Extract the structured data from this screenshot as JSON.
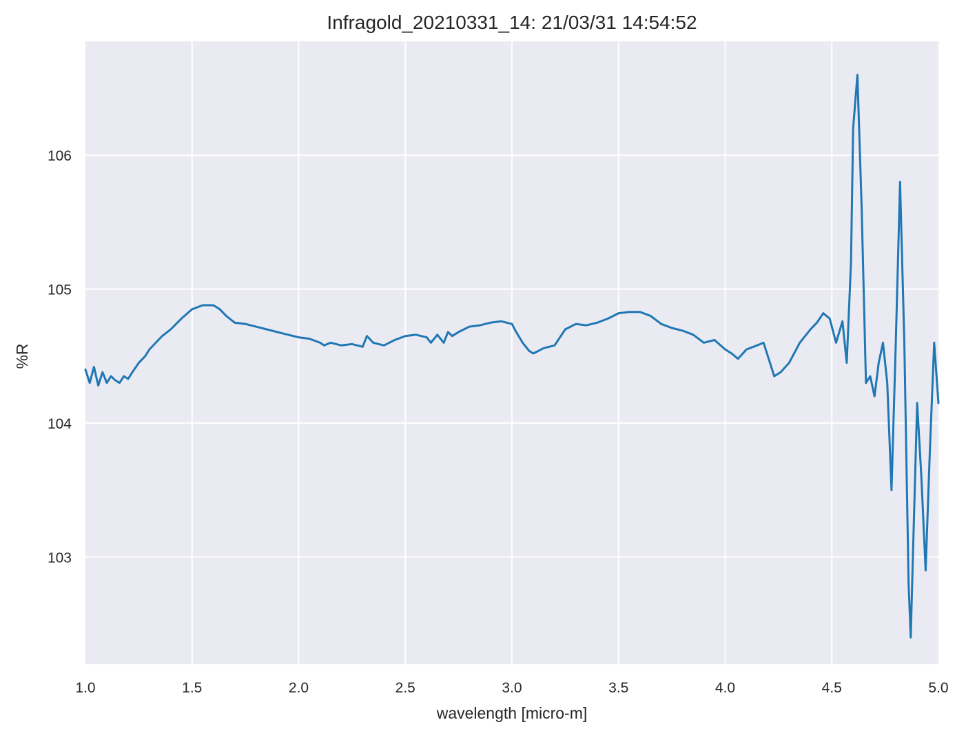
{
  "chart_data": {
    "type": "line",
    "title": "Infragold_20210331_14:  21/03/31 14:54:52",
    "xlabel": "wavelength [micro-m]",
    "ylabel": "%R",
    "xlim": [
      1.0,
      5.0
    ],
    "ylim": [
      102.2,
      106.85
    ],
    "xticks": [
      1.0,
      1.5,
      2.0,
      2.5,
      3.0,
      3.5,
      4.0,
      4.5,
      5.0
    ],
    "xtick_labels": [
      "1.0",
      "1.5",
      "2.0",
      "2.5",
      "3.0",
      "3.5",
      "4.0",
      "4.5",
      "5.0"
    ],
    "yticks": [
      103,
      104,
      105,
      106
    ],
    "ytick_labels": [
      "103",
      "104",
      "105",
      "106"
    ],
    "grid": true,
    "background": "#eaeaf2",
    "line_color": "#1f77b4",
    "series": [
      {
        "x": [
          1.0,
          1.02,
          1.04,
          1.06,
          1.08,
          1.1,
          1.12,
          1.14,
          1.16,
          1.18,
          1.2,
          1.22,
          1.25,
          1.28,
          1.3,
          1.33,
          1.36,
          1.4,
          1.45,
          1.5,
          1.55,
          1.6,
          1.63,
          1.66,
          1.7,
          1.75,
          1.8,
          1.85,
          1.9,
          1.95,
          2.0,
          2.05,
          2.1,
          2.12,
          2.15,
          2.2,
          2.25,
          2.3,
          2.32,
          2.35,
          2.4,
          2.45,
          2.5,
          2.55,
          2.6,
          2.62,
          2.65,
          2.68,
          2.7,
          2.72,
          2.75,
          2.8,
          2.85,
          2.9,
          2.95,
          3.0,
          3.02,
          3.05,
          3.08,
          3.1,
          3.15,
          3.2,
          3.25,
          3.3,
          3.35,
          3.4,
          3.45,
          3.5,
          3.55,
          3.6,
          3.65,
          3.7,
          3.75,
          3.8,
          3.85,
          3.9,
          3.95,
          4.0,
          4.03,
          4.06,
          4.1,
          4.15,
          4.18,
          4.2,
          4.23,
          4.26,
          4.3,
          4.35,
          4.4,
          4.43,
          4.46,
          4.49,
          4.52,
          4.55,
          4.57,
          4.59,
          4.6,
          4.62,
          4.64,
          4.66,
          4.68,
          4.7,
          4.72,
          4.74,
          4.76,
          4.78,
          4.8,
          4.82,
          4.84,
          4.86,
          4.87,
          4.88,
          4.9,
          4.92,
          4.94,
          4.96,
          4.98,
          5.0
        ],
        "y": [
          104.4,
          104.3,
          104.42,
          104.28,
          104.38,
          104.3,
          104.35,
          104.32,
          104.3,
          104.35,
          104.33,
          104.38,
          104.45,
          104.5,
          104.55,
          104.6,
          104.65,
          104.7,
          104.78,
          104.85,
          104.88,
          104.88,
          104.85,
          104.8,
          104.75,
          104.74,
          104.72,
          104.7,
          104.68,
          104.66,
          104.64,
          104.63,
          104.6,
          104.58,
          104.6,
          104.58,
          104.59,
          104.57,
          104.65,
          104.6,
          104.58,
          104.62,
          104.65,
          104.66,
          104.64,
          104.6,
          104.66,
          104.6,
          104.68,
          104.65,
          104.68,
          104.72,
          104.73,
          104.75,
          104.76,
          104.74,
          104.68,
          104.6,
          104.54,
          104.52,
          104.56,
          104.58,
          104.7,
          104.74,
          104.73,
          104.75,
          104.78,
          104.82,
          104.83,
          104.83,
          104.8,
          104.74,
          104.71,
          104.69,
          104.66,
          104.6,
          104.62,
          104.55,
          104.52,
          104.48,
          104.55,
          104.58,
          104.6,
          104.5,
          104.35,
          104.38,
          104.45,
          104.6,
          104.7,
          104.75,
          104.82,
          104.78,
          104.6,
          104.76,
          104.45,
          105.2,
          106.2,
          106.6,
          105.6,
          104.3,
          104.35,
          104.2,
          104.45,
          104.6,
          104.3,
          103.5,
          104.6,
          105.8,
          104.6,
          102.8,
          102.4,
          103.0,
          104.15,
          103.6,
          102.9,
          103.8,
          104.6,
          104.15
        ]
      }
    ]
  }
}
